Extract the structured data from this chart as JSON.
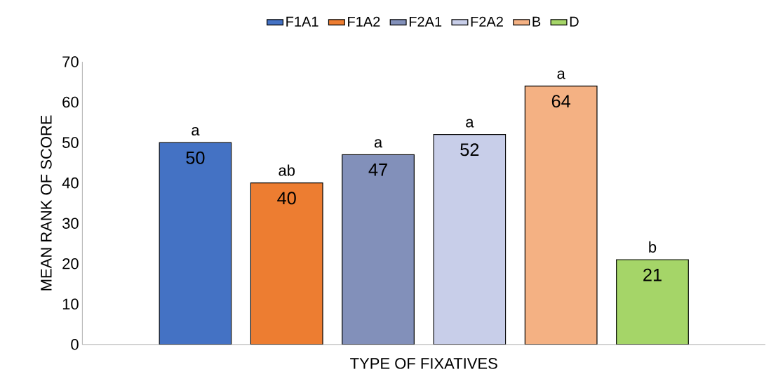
{
  "chart_data": {
    "type": "bar",
    "xlabel": "TYPE OF FIXATIVES",
    "ylabel": "MEAN RANK OF SCORE",
    "categories": [
      null
    ],
    "series": [
      {
        "name": "F1A1",
        "color": "#4472c4",
        "values": [
          50
        ]
      },
      {
        "name": "F1A2",
        "color": "#ed7d31",
        "values": [
          40
        ]
      },
      {
        "name": "F2A1",
        "color": "#8290ba",
        "values": [
          47
        ]
      },
      {
        "name": "F2A2",
        "color": "#c8cee9",
        "values": [
          52
        ]
      },
      {
        "name": "B",
        "color": "#f4b183",
        "values": [
          64
        ]
      },
      {
        "name": "D",
        "color": "#a5d568",
        "values": [
          21
        ]
      }
    ],
    "annotations": [
      "a",
      "ab",
      "a",
      "a",
      "a",
      "b"
    ],
    "ylim": [
      0,
      70
    ],
    "yticks": [
      0,
      10,
      20,
      30,
      40,
      50,
      60,
      70
    ],
    "data_labels": true,
    "legend": "top",
    "grid": false
  }
}
